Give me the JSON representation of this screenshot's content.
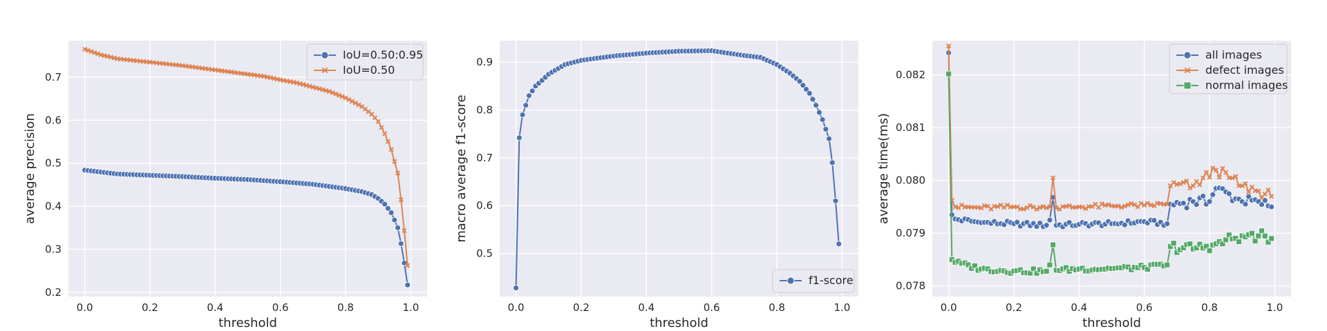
{
  "chart_data": [
    {
      "type": "line",
      "title": "",
      "xlabel": "threshold",
      "ylabel": "average precision",
      "xlim": [
        -0.05,
        1.05
      ],
      "ylim": [
        0.19,
        0.785
      ],
      "xticks": [
        "0.0",
        "0.2",
        "0.4",
        "0.6",
        "0.8",
        "1.0"
      ],
      "yticks": [
        "0.2",
        "0.3",
        "0.4",
        "0.5",
        "0.6",
        "0.7"
      ],
      "grid": true,
      "legend_position": "top-right",
      "series": [
        {
          "name": "IoU=0.50:0.95",
          "color": "#4c72b0",
          "marker": "circle",
          "anchors": [
            [
              0.0,
              0.484
            ],
            [
              0.1,
              0.475
            ],
            [
              0.2,
              0.472
            ],
            [
              0.3,
              0.469
            ],
            [
              0.4,
              0.465
            ],
            [
              0.5,
              0.462
            ],
            [
              0.6,
              0.457
            ],
            [
              0.7,
              0.451
            ],
            [
              0.8,
              0.441
            ],
            [
              0.85,
              0.434
            ],
            [
              0.88,
              0.427
            ],
            [
              0.9,
              0.418
            ],
            [
              0.92,
              0.405
            ],
            [
              0.94,
              0.385
            ],
            [
              0.95,
              0.368
            ],
            [
              0.96,
              0.35
            ],
            [
              0.97,
              0.313
            ],
            [
              0.98,
              0.268
            ],
            [
              0.99,
              0.217
            ]
          ]
        },
        {
          "name": "IoU=0.50",
          "color": "#dd8452",
          "marker": "x",
          "anchors": [
            [
              0.0,
              0.765
            ],
            [
              0.05,
              0.752
            ],
            [
              0.1,
              0.743
            ],
            [
              0.2,
              0.735
            ],
            [
              0.3,
              0.727
            ],
            [
              0.4,
              0.717
            ],
            [
              0.5,
              0.707
            ],
            [
              0.55,
              0.702
            ],
            [
              0.6,
              0.694
            ],
            [
              0.65,
              0.687
            ],
            [
              0.7,
              0.677
            ],
            [
              0.75,
              0.667
            ],
            [
              0.8,
              0.652
            ],
            [
              0.85,
              0.632
            ],
            [
              0.88,
              0.614
            ],
            [
              0.9,
              0.597
            ],
            [
              0.92,
              0.569
            ],
            [
              0.94,
              0.532
            ],
            [
              0.95,
              0.504
            ],
            [
              0.96,
              0.477
            ],
            [
              0.97,
              0.415
            ],
            [
              0.98,
              0.343
            ],
            [
              0.99,
              0.262
            ]
          ]
        }
      ]
    },
    {
      "type": "line",
      "title": "",
      "xlabel": "threshold",
      "ylabel": "macro average f1-score",
      "xlim": [
        -0.05,
        1.05
      ],
      "ylim": [
        0.41,
        0.945
      ],
      "xticks": [
        "0.0",
        "0.2",
        "0.4",
        "0.6",
        "0.8",
        "1.0"
      ],
      "yticks": [
        "0.5",
        "0.6",
        "0.7",
        "0.8",
        "0.9"
      ],
      "grid": true,
      "legend_position": "bottom-right",
      "series": [
        {
          "name": "f1-score",
          "color": "#4c72b0",
          "marker": "circle",
          "anchors": [
            [
              0.0,
              0.428
            ],
            [
              0.01,
              0.742
            ],
            [
              0.02,
              0.79
            ],
            [
              0.04,
              0.83
            ],
            [
              0.06,
              0.85
            ],
            [
              0.08,
              0.862
            ],
            [
              0.1,
              0.875
            ],
            [
              0.15,
              0.895
            ],
            [
              0.2,
              0.904
            ],
            [
              0.3,
              0.913
            ],
            [
              0.4,
              0.919
            ],
            [
              0.5,
              0.923
            ],
            [
              0.6,
              0.924
            ],
            [
              0.65,
              0.919
            ],
            [
              0.7,
              0.914
            ],
            [
              0.75,
              0.91
            ],
            [
              0.8,
              0.895
            ],
            [
              0.84,
              0.877
            ],
            [
              0.87,
              0.86
            ],
            [
              0.9,
              0.835
            ],
            [
              0.92,
              0.81
            ],
            [
              0.94,
              0.78
            ],
            [
              0.96,
              0.74
            ],
            [
              0.97,
              0.69
            ],
            [
              0.98,
              0.61
            ],
            [
              0.99,
              0.52
            ]
          ]
        }
      ]
    },
    {
      "type": "line",
      "title": "",
      "xlabel": "threshold",
      "ylabel": "average time(ms)",
      "xlim": [
        -0.05,
        1.05
      ],
      "ylim": [
        0.0778,
        0.08265
      ],
      "xticks": [
        "0.0",
        "0.2",
        "0.4",
        "0.6",
        "0.8",
        "1.0"
      ],
      "yticks": [
        "0.078",
        "0.079",
        "0.080",
        "0.081",
        "0.082"
      ],
      "grid": true,
      "legend_position": "top-right",
      "series": [
        {
          "name": "all images",
          "color": "#4c72b0",
          "marker": "circle",
          "anchors": [
            [
              0.0,
              0.08242
            ],
            [
              0.01,
              0.07935
            ],
            [
              0.02,
              0.07927
            ],
            [
              0.1,
              0.0792
            ],
            [
              0.2,
              0.07918
            ],
            [
              0.3,
              0.07915
            ],
            [
              0.31,
              0.07925
            ],
            [
              0.32,
              0.07968
            ],
            [
              0.33,
              0.07915
            ],
            [
              0.4,
              0.07917
            ],
            [
              0.5,
              0.07918
            ],
            [
              0.6,
              0.07922
            ],
            [
              0.67,
              0.07918
            ],
            [
              0.68,
              0.07955
            ],
            [
              0.75,
              0.0796
            ],
            [
              0.8,
              0.0796
            ],
            [
              0.82,
              0.07985
            ],
            [
              0.9,
              0.0796
            ],
            [
              0.95,
              0.0796
            ],
            [
              0.99,
              0.0795
            ]
          ]
        },
        {
          "name": "defect images",
          "color": "#dd8452",
          "marker": "x",
          "anchors": [
            [
              0.0,
              0.08255
            ],
            [
              0.01,
              0.07962
            ],
            [
              0.02,
              0.0795
            ],
            [
              0.1,
              0.07948
            ],
            [
              0.2,
              0.0795
            ],
            [
              0.3,
              0.07948
            ],
            [
              0.31,
              0.0795
            ],
            [
              0.32,
              0.08005
            ],
            [
              0.33,
              0.07948
            ],
            [
              0.4,
              0.0795
            ],
            [
              0.5,
              0.07952
            ],
            [
              0.6,
              0.07953
            ],
            [
              0.67,
              0.07955
            ],
            [
              0.68,
              0.0799
            ],
            [
              0.75,
              0.0799
            ],
            [
              0.82,
              0.0802
            ],
            [
              0.9,
              0.0799
            ],
            [
              0.95,
              0.0798
            ],
            [
              0.99,
              0.0797
            ]
          ]
        },
        {
          "name": "normal images",
          "color": "#55a868",
          "marker": "square",
          "anchors": [
            [
              0.0,
              0.08202
            ],
            [
              0.01,
              0.0785
            ],
            [
              0.02,
              0.07845
            ],
            [
              0.1,
              0.07832
            ],
            [
              0.2,
              0.07828
            ],
            [
              0.3,
              0.07828
            ],
            [
              0.31,
              0.0784
            ],
            [
              0.32,
              0.07878
            ],
            [
              0.33,
              0.0783
            ],
            [
              0.4,
              0.07832
            ],
            [
              0.5,
              0.07833
            ],
            [
              0.6,
              0.07835
            ],
            [
              0.67,
              0.0784
            ],
            [
              0.68,
              0.07875
            ],
            [
              0.75,
              0.0787
            ],
            [
              0.82,
              0.0788
            ],
            [
              0.9,
              0.07895
            ],
            [
              0.95,
              0.07895
            ],
            [
              0.99,
              0.0789
            ]
          ]
        }
      ]
    }
  ]
}
